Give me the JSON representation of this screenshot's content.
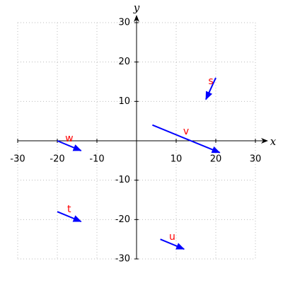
{
  "chart_data": {
    "type": "vector",
    "x_label": "x",
    "y_label": "y",
    "xlim": [
      -30,
      30
    ],
    "ylim": [
      -30,
      30
    ],
    "xticks": [
      -30,
      -20,
      -10,
      10,
      20,
      30
    ],
    "yticks": [
      -30,
      -20,
      -10,
      10,
      20,
      30
    ],
    "grid": true,
    "color": "#0000ff",
    "label_color": "#ff0000",
    "vectors": [
      {
        "name": "s",
        "x": 20,
        "y": 16,
        "dx": -2.5,
        "dy": -5.5
      },
      {
        "name": "v",
        "x": 4,
        "y": 4,
        "dx": 17,
        "dy": -7
      },
      {
        "name": "w",
        "x": -20,
        "y": 0,
        "dx": 6,
        "dy": -2.5
      },
      {
        "name": "t",
        "x": -20,
        "y": -18,
        "dx": 6,
        "dy": -2.5
      },
      {
        "name": "u",
        "x": 6,
        "y": -25,
        "dx": 6,
        "dy": -2.5
      }
    ]
  }
}
